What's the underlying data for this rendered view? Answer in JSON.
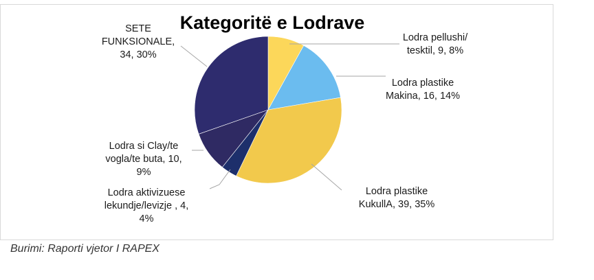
{
  "chart_data": {
    "type": "pie",
    "title": "Kategoritë e Lodrave",
    "slices": [
      {
        "label_lines": [
          "Lodra pellushi/",
          "tesktil, 9, 8%"
        ],
        "value": 9,
        "percent": 8,
        "color": "#fcd75a"
      },
      {
        "label_lines": [
          "Lodra plastike",
          "Makina, 16, 14%"
        ],
        "value": 16,
        "percent": 14,
        "color": "#6bbcef"
      },
      {
        "label_lines": [
          "Lodra plastike",
          "KukullA, 39, 35%"
        ],
        "value": 39,
        "percent": 35,
        "color": "#f2c94c"
      },
      {
        "label_lines": [
          "Lodra aktivizuese",
          "lekundje/levizje , 4,",
          "4%"
        ],
        "value": 4,
        "percent": 4,
        "color": "#1d2f6b"
      },
      {
        "label_lines": [
          "Lodra si Clay/te",
          "vogla/te buta, 10,",
          "9%"
        ],
        "value": 10,
        "percent": 9,
        "color": "#2f2a63"
      },
      {
        "label_lines": [
          "SETE",
          "FUNKSIONALE,",
          "34, 30%"
        ],
        "value": 34,
        "percent": 30,
        "color": "#2e2c6e"
      }
    ]
  },
  "source_note": "Burimi: Raporti vjetor I RAPEX"
}
